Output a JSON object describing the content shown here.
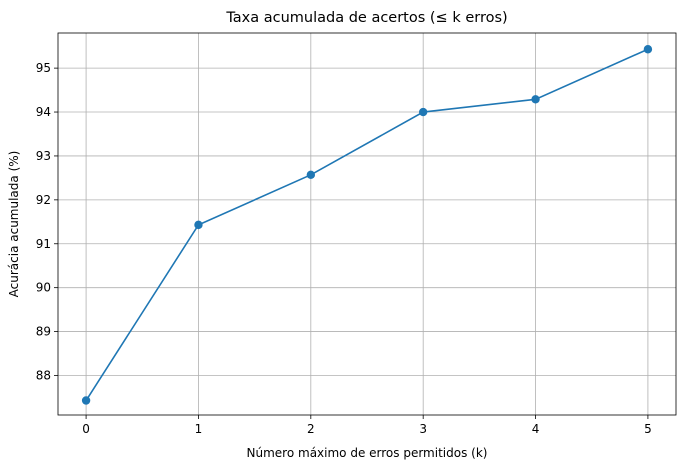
{
  "chart_data": {
    "type": "line",
    "title": "Taxa acumulada de acertos (≤ k erros)",
    "xlabel": "Número máximo de erros permitidos (k)",
    "ylabel": "Acurácia acumulada (%)",
    "x": [
      0,
      1,
      2,
      3,
      4,
      5
    ],
    "x_tick_labels": [
      "0",
      "1",
      "2",
      "3",
      "4",
      "5"
    ],
    "y_ticks": [
      88,
      89,
      90,
      91,
      92,
      93,
      94,
      95
    ],
    "y_tick_labels": [
      "88",
      "89",
      "90",
      "91",
      "92",
      "93",
      "94",
      "95"
    ],
    "xlim": [
      -0.25,
      5.25
    ],
    "ylim": [
      87.1,
      95.8
    ],
    "grid": true,
    "series": [
      {
        "values": [
          87.43,
          91.43,
          92.57,
          94.0,
          94.29,
          95.43
        ],
        "color": "#1f77b4",
        "marker": "circle"
      }
    ]
  }
}
